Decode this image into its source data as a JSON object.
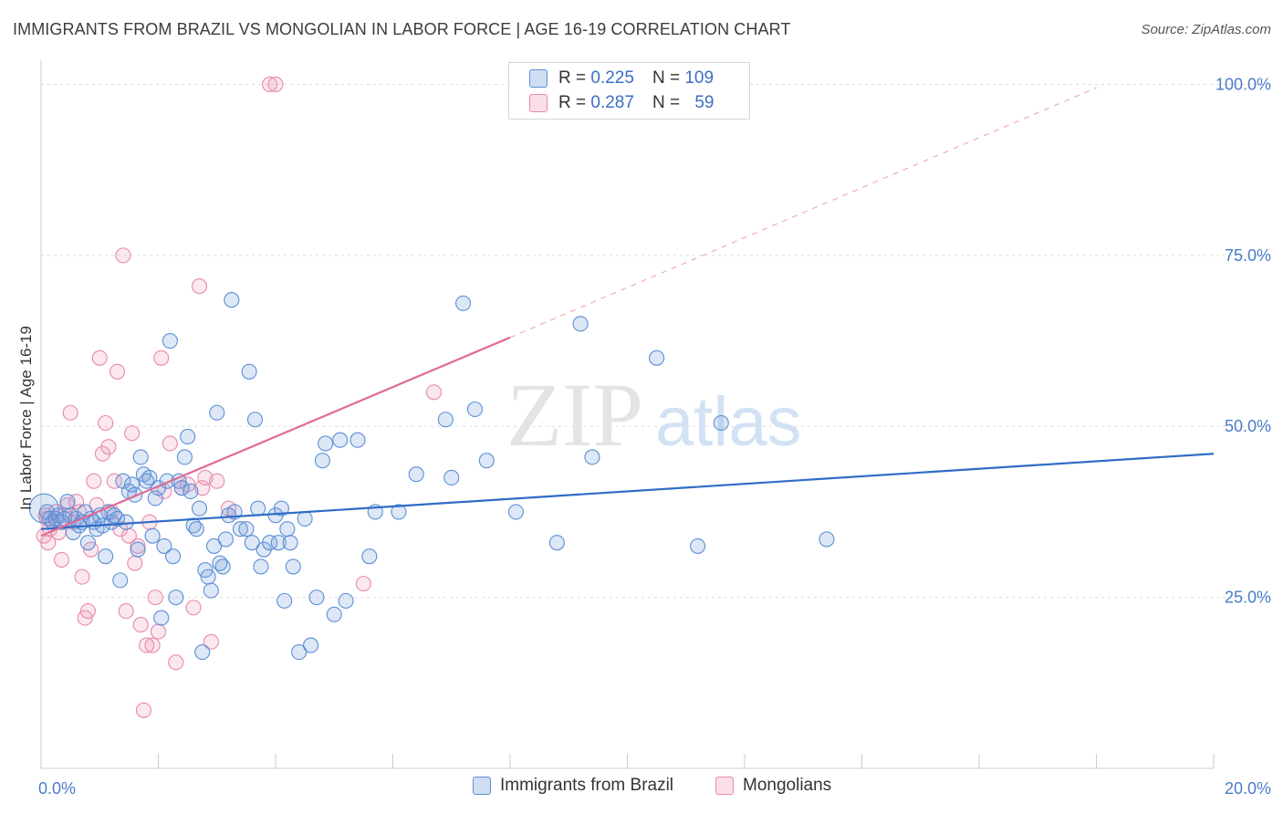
{
  "title": "IMMIGRANTS FROM BRAZIL VS MONGOLIAN IN LABOR FORCE | AGE 16-19 CORRELATION CHART",
  "source": "Source: ZipAtlas.com",
  "watermark": {
    "zip": "ZIP",
    "atlas": "atlas"
  },
  "colors": {
    "blue": "#5b8fd6",
    "blue_fill": "rgba(120,160,220,0.25)",
    "blue_line": "#2f6cc6",
    "pink": "#e98aa8",
    "pink_fill": "rgba(240,160,190,0.25)",
    "pink_line": "#e06a93"
  },
  "legend": {
    "rows": [
      {
        "r_label": "R =",
        "r_value": "0.225",
        "n_label": "N =",
        "n_value": "109"
      },
      {
        "r_label": "R =",
        "r_value": "0.287",
        "n_label": "N =",
        "n_value": "59"
      }
    ]
  },
  "bottom_legend": [
    {
      "label": "Immigrants from Brazil"
    },
    {
      "label": "Mongolians"
    }
  ],
  "chart_data": {
    "type": "scatter",
    "title": "IMMIGRANTS FROM BRAZIL VS MONGOLIAN IN LABOR FORCE | AGE 16-19 CORRELATION CHART",
    "xlabel": "",
    "ylabel": "In Labor Force | Age 16-19",
    "xlim": [
      0,
      20
    ],
    "ylim": [
      0,
      103
    ],
    "x_tick_labels": [
      "0.0%",
      "20.0%"
    ],
    "y_ticks": [
      25,
      50,
      75,
      100
    ],
    "y_tick_labels": [
      "25.0%",
      "50.0%",
      "75.0%",
      "100.0%"
    ],
    "series": [
      {
        "name": "Immigrants from Brazil",
        "R": 0.225,
        "N": 109,
        "trend": {
          "x": [
            0,
            20
          ],
          "y": [
            35.0,
            46.0
          ],
          "style": "solid"
        },
        "points": [
          [
            0.05,
            38.0
          ],
          [
            0.1,
            37.5
          ],
          [
            0.15,
            36.5
          ],
          [
            0.2,
            36.0
          ],
          [
            0.25,
            36.5
          ],
          [
            0.3,
            37.0
          ],
          [
            0.35,
            36.0
          ],
          [
            0.4,
            36.5
          ],
          [
            0.45,
            39.0
          ],
          [
            0.5,
            37.0
          ],
          [
            0.55,
            34.5
          ],
          [
            0.6,
            36.5
          ],
          [
            0.65,
            35.5
          ],
          [
            0.7,
            36.0
          ],
          [
            0.75,
            37.5
          ],
          [
            0.8,
            33.0
          ],
          [
            0.85,
            36.5
          ],
          [
            0.9,
            36.0
          ],
          [
            0.95,
            35.0
          ],
          [
            1.0,
            37.0
          ],
          [
            1.05,
            35.5
          ],
          [
            1.1,
            31.0
          ],
          [
            1.15,
            37.5
          ],
          [
            1.2,
            36.0
          ],
          [
            1.25,
            37.0
          ],
          [
            1.3,
            36.5
          ],
          [
            1.35,
            27.5
          ],
          [
            1.4,
            42.0
          ],
          [
            1.45,
            36.0
          ],
          [
            1.5,
            40.5
          ],
          [
            1.55,
            41.5
          ],
          [
            1.6,
            40.0
          ],
          [
            1.65,
            32.0
          ],
          [
            1.7,
            45.5
          ],
          [
            1.75,
            43.0
          ],
          [
            1.8,
            42.0
          ],
          [
            1.85,
            42.5
          ],
          [
            1.9,
            34.0
          ],
          [
            1.95,
            39.5
          ],
          [
            2.0,
            41.0
          ],
          [
            2.05,
            22.0
          ],
          [
            2.1,
            32.5
          ],
          [
            2.15,
            42.0
          ],
          [
            2.2,
            62.5
          ],
          [
            2.25,
            31.0
          ],
          [
            2.3,
            25.0
          ],
          [
            2.35,
            42.0
          ],
          [
            2.4,
            41.0
          ],
          [
            2.45,
            45.5
          ],
          [
            2.5,
            48.5
          ],
          [
            2.55,
            40.5
          ],
          [
            2.6,
            35.5
          ],
          [
            2.65,
            35.0
          ],
          [
            2.7,
            38.0
          ],
          [
            2.75,
            17.0
          ],
          [
            2.8,
            29.0
          ],
          [
            2.85,
            28.0
          ],
          [
            2.9,
            26.0
          ],
          [
            2.95,
            32.5
          ],
          [
            3.0,
            52.0
          ],
          [
            3.05,
            30.0
          ],
          [
            3.1,
            29.5
          ],
          [
            3.15,
            33.5
          ],
          [
            3.2,
            37.0
          ],
          [
            3.25,
            68.5
          ],
          [
            3.3,
            37.5
          ],
          [
            3.4,
            35.0
          ],
          [
            3.5,
            35.0
          ],
          [
            3.55,
            58.0
          ],
          [
            3.6,
            33.0
          ],
          [
            3.65,
            51.0
          ],
          [
            3.7,
            38.0
          ],
          [
            3.75,
            29.5
          ],
          [
            3.8,
            32.0
          ],
          [
            3.9,
            33.0
          ],
          [
            4.0,
            37.0
          ],
          [
            4.05,
            33.0
          ],
          [
            4.1,
            38.0
          ],
          [
            4.15,
            24.5
          ],
          [
            4.2,
            35.0
          ],
          [
            4.25,
            33.0
          ],
          [
            4.3,
            29.5
          ],
          [
            4.4,
            17.0
          ],
          [
            4.5,
            36.5
          ],
          [
            4.6,
            18.0
          ],
          [
            4.7,
            25.0
          ],
          [
            4.8,
            45.0
          ],
          [
            4.85,
            47.5
          ],
          [
            5.0,
            22.5
          ],
          [
            5.1,
            48.0
          ],
          [
            5.2,
            24.5
          ],
          [
            5.4,
            48.0
          ],
          [
            5.6,
            31.0
          ],
          [
            5.7,
            37.5
          ],
          [
            6.1,
            37.5
          ],
          [
            6.4,
            43.0
          ],
          [
            6.9,
            51.0
          ],
          [
            7.0,
            42.5
          ],
          [
            7.2,
            68.0
          ],
          [
            7.4,
            52.5
          ],
          [
            7.6,
            45.0
          ],
          [
            8.1,
            37.5
          ],
          [
            8.8,
            33.0
          ],
          [
            9.2,
            65.0
          ],
          [
            9.4,
            45.5
          ],
          [
            10.5,
            60.0
          ],
          [
            11.2,
            32.5
          ],
          [
            11.6,
            50.5
          ],
          [
            13.4,
            33.5
          ]
        ]
      },
      {
        "name": "Mongolians",
        "R": 0.287,
        "N": 59,
        "trend": {
          "x": [
            0,
            8
          ],
          "y": [
            34.0,
            63.0
          ],
          "style": "solid",
          "extension": {
            "x": [
              8,
              18
            ],
            "y": [
              63.0,
              99.5
            ],
            "style": "dashed"
          }
        },
        "points": [
          [
            0.05,
            34.0
          ],
          [
            0.08,
            37.0
          ],
          [
            0.1,
            36.5
          ],
          [
            0.12,
            33.0
          ],
          [
            0.15,
            35.0
          ],
          [
            0.2,
            36.0
          ],
          [
            0.25,
            37.5
          ],
          [
            0.3,
            34.5
          ],
          [
            0.35,
            30.5
          ],
          [
            0.4,
            37.0
          ],
          [
            0.45,
            38.5
          ],
          [
            0.5,
            52.0
          ],
          [
            0.55,
            36.0
          ],
          [
            0.6,
            39.0
          ],
          [
            0.65,
            37.5
          ],
          [
            0.7,
            28.0
          ],
          [
            0.75,
            22.0
          ],
          [
            0.8,
            23.0
          ],
          [
            0.85,
            32.0
          ],
          [
            0.9,
            42.0
          ],
          [
            0.95,
            38.5
          ],
          [
            1.0,
            60.0
          ],
          [
            1.05,
            46.0
          ],
          [
            1.1,
            50.5
          ],
          [
            1.15,
            47.0
          ],
          [
            1.2,
            37.5
          ],
          [
            1.25,
            42.0
          ],
          [
            1.3,
            58.0
          ],
          [
            1.35,
            35.0
          ],
          [
            1.4,
            75.0
          ],
          [
            1.45,
            23.0
          ],
          [
            1.5,
            34.0
          ],
          [
            1.55,
            49.0
          ],
          [
            1.6,
            30.0
          ],
          [
            1.65,
            32.5
          ],
          [
            1.7,
            21.0
          ],
          [
            1.75,
            8.5
          ],
          [
            1.8,
            18.0
          ],
          [
            1.85,
            36.0
          ],
          [
            1.9,
            18.0
          ],
          [
            1.95,
            25.0
          ],
          [
            2.0,
            20.0
          ],
          [
            2.05,
            60.0
          ],
          [
            2.1,
            40.5
          ],
          [
            2.2,
            47.5
          ],
          [
            2.3,
            15.5
          ],
          [
            2.4,
            41.0
          ],
          [
            2.5,
            41.5
          ],
          [
            2.6,
            23.5
          ],
          [
            2.7,
            70.5
          ],
          [
            2.75,
            41.0
          ],
          [
            2.8,
            42.5
          ],
          [
            2.9,
            18.5
          ],
          [
            3.0,
            42.0
          ],
          [
            3.2,
            38.0
          ],
          [
            3.9,
            100.0
          ],
          [
            4.0,
            100.0
          ],
          [
            5.5,
            27.0
          ],
          [
            6.7,
            55.0
          ]
        ]
      }
    ]
  }
}
